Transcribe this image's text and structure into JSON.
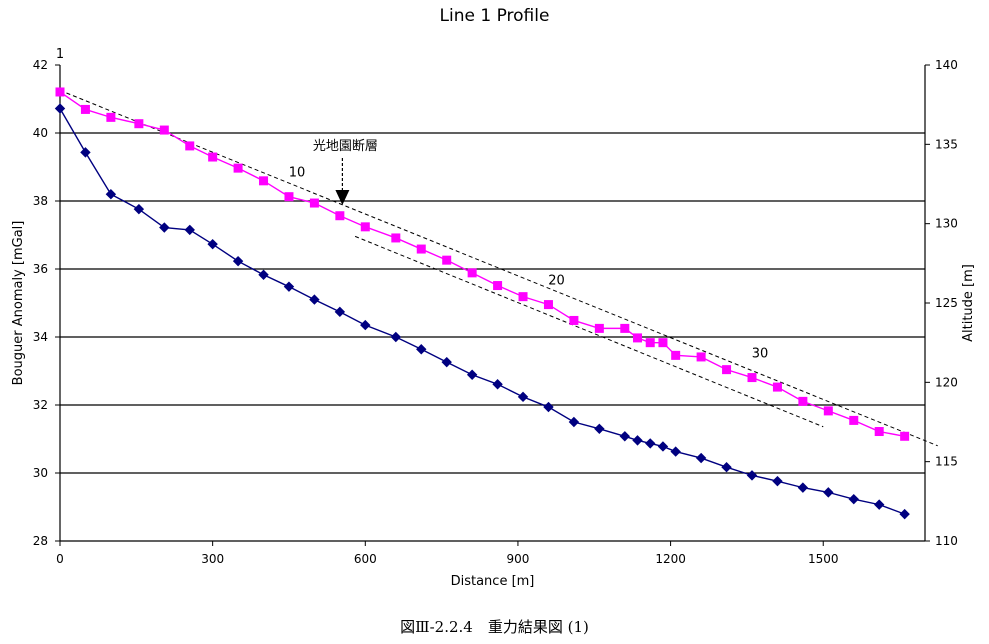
{
  "chart_data": {
    "type": "line",
    "title": "Line 1 Profile",
    "xlabel": "Distance [m]",
    "ylabel_left": "Bouguer Anomaly [mGal]",
    "ylabel_right": "Altitude [m]",
    "xlim": [
      0,
      1700
    ],
    "ylim_left": [
      28,
      42
    ],
    "ylim_right": [
      110,
      140
    ],
    "x_ticks": [
      "0",
      "300",
      "600",
      "900",
      "1200",
      "1500"
    ],
    "y_left_ticks": [
      "28",
      "30",
      "32",
      "34",
      "36",
      "38",
      "40",
      "42"
    ],
    "y_right_ticks": [
      "110",
      "115",
      "120",
      "125",
      "130",
      "135",
      "140"
    ],
    "grid": "horizontal",
    "series": [
      {
        "axis": "left",
        "color": "#000080",
        "marker": "diamond",
        "x": [
          0,
          50,
          100,
          155,
          205,
          255,
          300,
          350,
          400,
          450,
          500,
          550,
          600,
          660,
          710,
          760,
          810,
          860,
          910,
          960,
          1010,
          1060,
          1110,
          1135,
          1160,
          1185,
          1210,
          1260,
          1310,
          1360,
          1410,
          1460,
          1510,
          1560,
          1610,
          1660
        ],
        "y": [
          40.72,
          39.43,
          38.2,
          37.76,
          37.22,
          37.15,
          36.73,
          36.23,
          35.83,
          35.48,
          35.1,
          34.74,
          34.35,
          34.0,
          33.64,
          33.26,
          32.89,
          32.61,
          32.24,
          31.94,
          31.5,
          31.3,
          31.08,
          30.96,
          30.87,
          30.78,
          30.63,
          30.44,
          30.17,
          29.93,
          29.76,
          29.57,
          29.43,
          29.23,
          29.07,
          28.79
        ]
      },
      {
        "axis": "right",
        "color": "#ff00ff",
        "marker": "square",
        "x": [
          0,
          50,
          100,
          155,
          205,
          255,
          300,
          350,
          400,
          450,
          500,
          550,
          600,
          660,
          710,
          760,
          810,
          860,
          910,
          960,
          1010,
          1060,
          1110,
          1135,
          1160,
          1185,
          1210,
          1260,
          1310,
          1360,
          1410,
          1460,
          1510,
          1560,
          1610,
          1660
        ],
        "y": [
          138.3,
          137.2,
          136.7,
          136.3,
          135.9,
          134.9,
          134.2,
          133.5,
          132.7,
          131.7,
          131.3,
          130.5,
          129.8,
          129.1,
          128.4,
          127.7,
          126.9,
          126.1,
          125.4,
          124.9,
          123.9,
          123.4,
          123.4,
          122.8,
          122.5,
          122.5,
          121.7,
          121.6,
          120.8,
          120.3,
          119.7,
          118.8,
          118.2,
          117.6,
          116.9,
          116.6
        ]
      }
    ],
    "trend_lines": [
      {
        "axis": "right",
        "x": [
          0,
          1725
        ],
        "y": [
          138.4,
          116.0
        ]
      },
      {
        "axis": "right",
        "x": [
          580,
          1500
        ],
        "y": [
          129.2,
          117.2
        ]
      }
    ],
    "annotations": {
      "fault_label": "光地園断層",
      "point_labels": [
        {
          "text": "1",
          "x": 0,
          "y": 138.3
        },
        {
          "text": "10",
          "x": 450,
          "y": 131.7
        },
        {
          "text": "20",
          "x": 960,
          "y": 124.9
        },
        {
          "text": "30",
          "x": 1360,
          "y": 120.3
        }
      ],
      "fault_arrow_x": 555
    }
  },
  "caption": "図Ⅲ-2.2.4　重力結果図 (1)"
}
